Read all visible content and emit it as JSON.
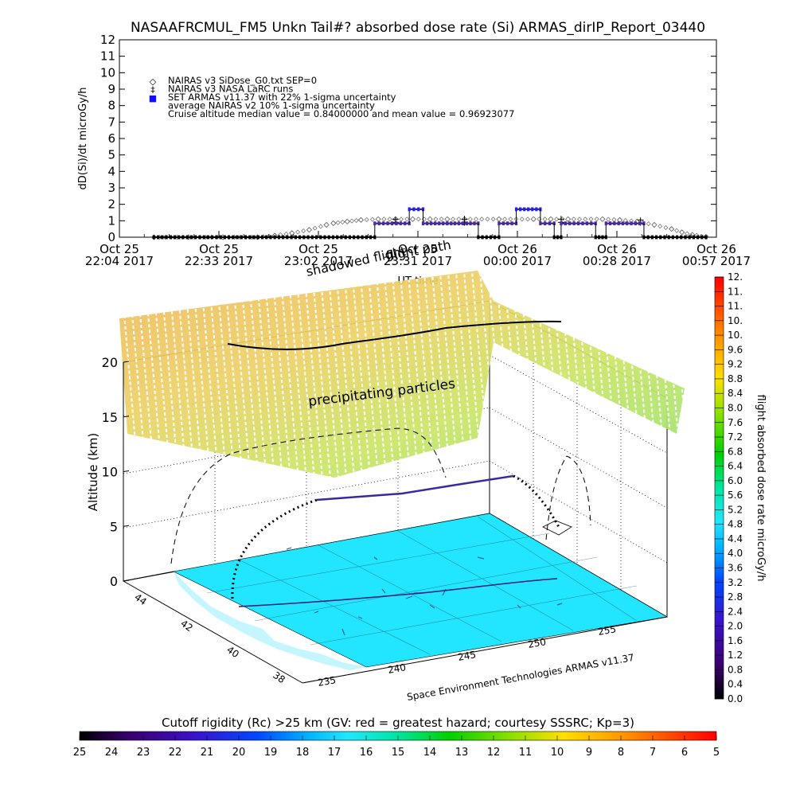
{
  "title": "NASAAFRCMUL_FM5 Unkn Tail#? absorbed dose rate (Si) ARMAS_dirIP_Report_03440",
  "chart_data": [
    {
      "type": "line",
      "ylabel": "dD(Si)/dt microGy/h",
      "xlabel": "UT time",
      "ylim": [
        0,
        12
      ],
      "yticks": [
        0,
        1,
        2,
        3,
        4,
        5,
        6,
        7,
        8,
        9,
        10,
        11,
        12
      ],
      "x_ticks": [
        {
          "line1": "Oct 25",
          "line2": "22:04 2017"
        },
        {
          "line1": "Oct 25",
          "line2": "22:33 2017"
        },
        {
          "line1": "Oct 25",
          "line2": "23:02 2017"
        },
        {
          "line1": "Oct 25",
          "line2": "23:31 2017"
        },
        {
          "line1": "Oct 26",
          "line2": "00:00 2017"
        },
        {
          "line1": "Oct 26",
          "line2": "00:28 2017"
        },
        {
          "line1": "Oct 26",
          "line2": "00:57 2017"
        }
      ],
      "xlim_minutes": [
        0,
        173
      ],
      "legend": {
        "placement": "top-left",
        "entries": [
          {
            "symbol": "◇",
            "text": "NAIRAS v3 SiDose_G0.txt SEP=0"
          },
          {
            "symbol": "‡",
            "text": "NAIRAS v3 NASA LaRC runs"
          },
          {
            "symbol": "■",
            "text": "SET ARMAS v11.37 with 22% 1-sigma uncertainty",
            "color": "#1010ff"
          },
          {
            "symbol": "",
            "text": "average NAIRAS v2 10% 1-sigma uncertainty"
          },
          {
            "symbol": "",
            "text": "Cruise altitude median value = 0.84000000 and mean value = 0.96923077"
          }
        ]
      },
      "series": [
        {
          "symbol": "diamond",
          "x": [
            10,
            20,
            30,
            40,
            45,
            50,
            55,
            60,
            62,
            66,
            70,
            75,
            80,
            85,
            90,
            95,
            100,
            110,
            120,
            125,
            130,
            140,
            145,
            150,
            155,
            160,
            163,
            166,
            170
          ],
          "y": [
            0,
            0,
            0,
            0,
            0.1,
            0.25,
            0.45,
            0.75,
            0.85,
            0.95,
            1.05,
            1.1,
            1.1,
            1.1,
            1.1,
            1.1,
            1.1,
            1.1,
            1.1,
            1.1,
            1.1,
            1.1,
            1.05,
            0.95,
            0.75,
            0.5,
            0.3,
            0.15,
            0.02
          ]
        },
        {
          "symbol": "cross",
          "x": [
            80,
            100,
            128,
            151
          ],
          "y": [
            1.0,
            1.0,
            1.0,
            0.95
          ],
          "errors": [
            0.25,
            0.3,
            0.3,
            0.25
          ]
        },
        {
          "name": "SET ARMAS v11.37",
          "color": "#2020ff",
          "segments": [
            {
              "x": [
                10,
                74
              ],
              "y": [
                0,
                0
              ]
            },
            {
              "x": [
                74,
                84
              ],
              "y": [
                0.84,
                0.84
              ]
            },
            {
              "x": [
                84,
                88
              ],
              "y": [
                1.7,
                1.7
              ]
            },
            {
              "x": [
                88,
                95
              ],
              "y": [
                0.84,
                0.84
              ]
            },
            {
              "x": [
                95,
                104
              ],
              "y": [
                0.84,
                0.84
              ]
            },
            {
              "x": [
                104,
                110
              ],
              "y": [
                0,
                0
              ]
            },
            {
              "x": [
                110,
                115
              ],
              "y": [
                0.84,
                0.84
              ]
            },
            {
              "x": [
                115,
                122
              ],
              "y": [
                1.7,
                1.7
              ]
            },
            {
              "x": [
                122,
                126
              ],
              "y": [
                0.84,
                0.84
              ]
            },
            {
              "x": [
                126,
                128
              ],
              "y": [
                0,
                0
              ]
            },
            {
              "x": [
                128,
                138
              ],
              "y": [
                0.84,
                0.84
              ]
            },
            {
              "x": [
                138,
                141
              ],
              "y": [
                0,
                0
              ]
            },
            {
              "x": [
                141,
                152
              ],
              "y": [
                0.84,
                0.84
              ]
            },
            {
              "x": [
                152,
                170
              ],
              "y": [
                0,
                0
              ]
            }
          ]
        }
      ]
    },
    {
      "type": "scatter",
      "ylabel": "Altitude (km)",
      "zticks": [
        0,
        5,
        10,
        15,
        20
      ],
      "lat_ticks": [
        44,
        42,
        40,
        38
      ],
      "lon_ticks": [
        235,
        240,
        245,
        250,
        255
      ],
      "annotations": [
        "precipitating particles",
        "flight path",
        "shadowed flight"
      ],
      "footer": "Space Environment Technologies ARMAS v11.37"
    }
  ],
  "colorbar_right": {
    "label": "flight absorbed dose rate microGy/h",
    "ticks": [
      "0.0",
      "0.4",
      "0.8",
      "1.2",
      "1.6",
      "2.0",
      "2.4",
      "2.8",
      "3.2",
      "3.6",
      "4.0",
      "4.4",
      "4.8",
      "5.2",
      "5.6",
      "6.0",
      "6.4",
      "6.8",
      "7.2",
      "7.6",
      "8.0",
      "8.4",
      "8.8",
      "9.2",
      "9.6",
      "10.",
      "10.",
      "11.",
      "11.",
      "12."
    ]
  },
  "colorbar_bottom": {
    "label": "Cutoff rigidity (Rc) >25 km (GV: red = greatest hazard; courtesy SSSRC; Kp=3)",
    "ticks": [
      "25",
      "24",
      "23",
      "22",
      "21",
      "20",
      "19",
      "18",
      "17",
      "16",
      "15",
      "14",
      "13",
      "12",
      "11",
      "10",
      "9",
      "8",
      "7",
      "6",
      "5"
    ]
  },
  "colors": {
    "armas": "#2020ff",
    "map_fill": "#22e6ff",
    "path": "#2a1a70"
  }
}
